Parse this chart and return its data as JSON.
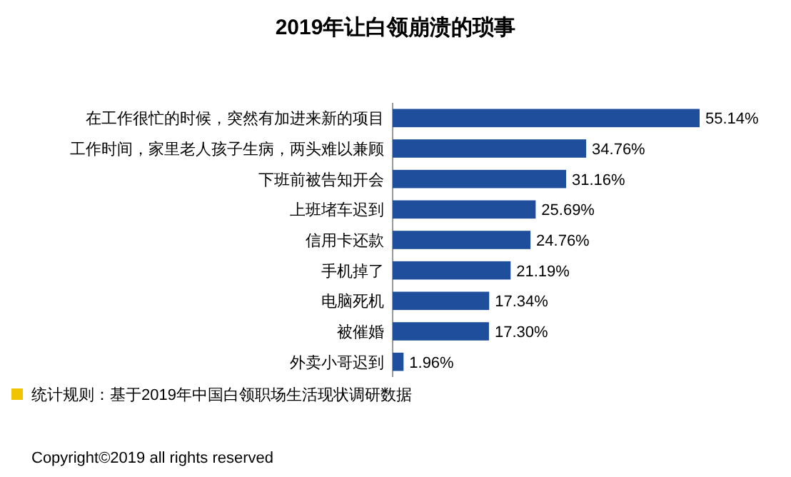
{
  "chart_data": {
    "type": "bar",
    "orientation": "horizontal",
    "title": "2019年让白领崩溃的琐事",
    "categories": [
      "在工作很忙的时候，突然有加进来新的项目",
      "工作时间，家里老人孩子生病，两头难以兼顾",
      "下班前被告知开会",
      "上班堵车迟到",
      "信用卡还款",
      "手机掉了",
      "电脑死机",
      "被催婚",
      "外卖小哥迟到"
    ],
    "values": [
      55.14,
      34.76,
      31.16,
      25.69,
      24.76,
      21.19,
      17.34,
      17.3,
      1.96
    ],
    "value_labels": [
      "55.14%",
      "34.76%",
      "31.16%",
      "25.69%",
      "24.76%",
      "21.19%",
      "17.34%",
      "17.30%",
      "1.96%"
    ],
    "color": "#1f4e9c",
    "annotations": [
      "统计规则：基于2019年中国白领职场生活现状调研数据",
      "Copyright©2019 all rights reserved"
    ]
  }
}
